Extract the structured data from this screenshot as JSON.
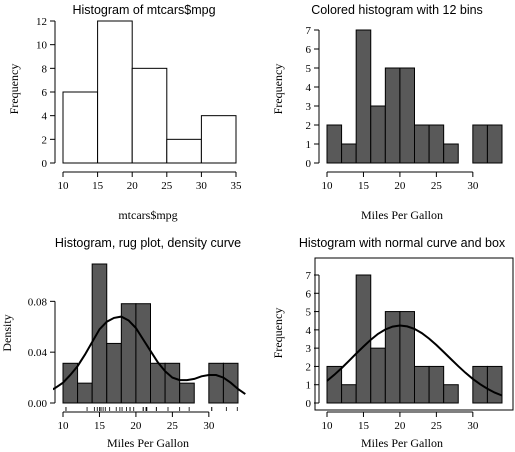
{
  "chart_data": [
    {
      "id": "p1",
      "type": "bar",
      "title": "Histogram of mtcars$mpg",
      "xlabel": "mtcars$mpg",
      "ylabel": "Frequency",
      "breaks": [
        10,
        15,
        20,
        25,
        30,
        35
      ],
      "values": [
        6,
        12,
        8,
        2,
        4
      ],
      "xlim": [
        10,
        35
      ],
      "ylim": [
        0,
        12
      ],
      "x_ticks": [
        10,
        15,
        20,
        25,
        30,
        35
      ],
      "y_ticks": [
        0,
        2,
        4,
        6,
        8,
        10,
        12
      ],
      "bar_color": "#ffffff",
      "box": false
    },
    {
      "id": "p2",
      "type": "bar",
      "title": "Colored histogram with 12 bins",
      "xlabel": "Miles Per Gallon",
      "ylabel": "Frequency",
      "breaks": [
        10,
        12,
        14,
        16,
        18,
        20,
        22,
        24,
        26,
        28,
        30,
        32,
        34
      ],
      "values": [
        2,
        1,
        7,
        3,
        5,
        5,
        2,
        2,
        1,
        0,
        2,
        2
      ],
      "xlim": [
        10,
        34
      ],
      "ylim": [
        0,
        7
      ],
      "x_ticks": [
        10,
        15,
        20,
        25,
        30
      ],
      "y_ticks": [
        0,
        1,
        2,
        3,
        4,
        5,
        6,
        7
      ],
      "bar_color": "#595959",
      "box": false
    },
    {
      "id": "p3",
      "type": "bar",
      "title": "Histogram, rug plot, density curve",
      "xlabel": "Miles Per Gallon",
      "ylabel": "Density",
      "breaks": [
        10,
        12,
        14,
        16,
        18,
        20,
        22,
        24,
        26,
        28,
        30,
        32,
        34
      ],
      "values": [
        0.03125,
        0.015625,
        0.109375,
        0.046875,
        0.078125,
        0.078125,
        0.03125,
        0.03125,
        0.015625,
        0,
        0.03125,
        0.03125
      ],
      "xlim": [
        10,
        34
      ],
      "ylim": [
        0,
        0.109375
      ],
      "x_ticks": [
        10,
        15,
        20,
        25,
        30
      ],
      "x_tick_labels": [
        "10",
        "15",
        "20",
        "25",
        "30"
      ],
      "y_ticks": [
        0,
        0.04,
        0.08
      ],
      "y_tick_labels": [
        "0.00",
        "0.04",
        "0.08"
      ],
      "bar_color": "#595959",
      "box": false,
      "rug": [
        21,
        21,
        22.8,
        21.4,
        18.7,
        18.1,
        14.3,
        24.4,
        22.8,
        19.2,
        17.8,
        16.4,
        17.3,
        15.2,
        10.4,
        10.4,
        14.7,
        32.4,
        30.4,
        33.9,
        21.5,
        15.5,
        15.2,
        13.3,
        19.2,
        27.3,
        26,
        30.4,
        15.8,
        19.7,
        15,
        21.4
      ],
      "curve": {
        "x": [
          8,
          9,
          10,
          11,
          12,
          13,
          14,
          15,
          16,
          17,
          18,
          19,
          20,
          21,
          22,
          23,
          24,
          25,
          26,
          27,
          28,
          29,
          30,
          31,
          32,
          33,
          34,
          35
        ],
        "y": [
          0.009,
          0.012,
          0.016,
          0.022,
          0.029,
          0.038,
          0.048,
          0.058,
          0.064,
          0.067,
          0.068,
          0.065,
          0.059,
          0.05,
          0.041,
          0.032,
          0.025,
          0.02,
          0.018,
          0.018,
          0.019,
          0.021,
          0.022,
          0.022,
          0.02,
          0.016,
          0.011,
          0.007
        ]
      }
    },
    {
      "id": "p4",
      "type": "bar",
      "title": "Histogram with normal curve and box",
      "xlabel": "Miles Per Gallon",
      "ylabel": "Frequency",
      "breaks": [
        10,
        12,
        14,
        16,
        18,
        20,
        22,
        24,
        26,
        28,
        30,
        32,
        34
      ],
      "values": [
        2,
        1,
        7,
        3,
        5,
        5,
        2,
        2,
        1,
        0,
        2,
        2
      ],
      "xlim": [
        10,
        34
      ],
      "ylim": [
        0,
        7
      ],
      "x_ticks": [
        10,
        15,
        20,
        25,
        30
      ],
      "y_ticks": [
        0,
        1,
        2,
        3,
        4,
        5,
        6,
        7
      ],
      "bar_color": "#595959",
      "box": true,
      "curve": {
        "x": [
          10,
          11,
          12,
          13,
          14,
          15,
          16,
          17,
          18,
          19,
          20,
          21,
          22,
          23,
          24,
          25,
          26,
          27,
          28,
          29,
          30,
          31,
          32,
          33,
          34
        ],
        "y": [
          1.21,
          1.54,
          1.91,
          2.3,
          2.7,
          3.09,
          3.46,
          3.78,
          4.02,
          4.18,
          4.24,
          4.19,
          4.05,
          3.82,
          3.52,
          3.17,
          2.79,
          2.4,
          2.01,
          1.65,
          1.32,
          1.03,
          0.78,
          0.57,
          0.41
        ]
      }
    }
  ]
}
